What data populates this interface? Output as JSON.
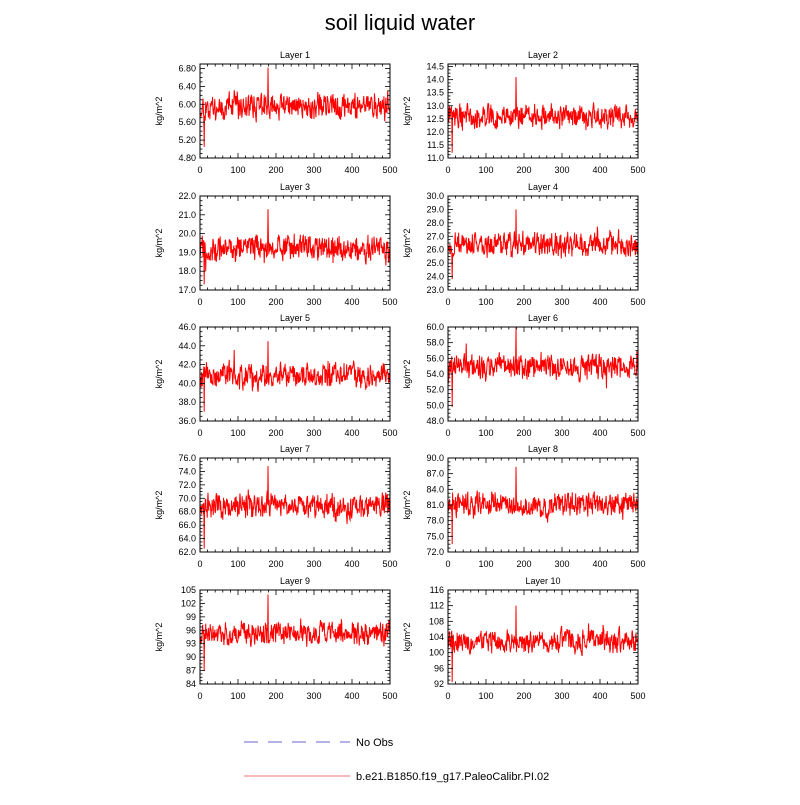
{
  "figure": {
    "title": "soil liquid water"
  },
  "colors": {
    "model_line": "#ff0000",
    "obs_line": "#9a9ade",
    "legend_model_line": "#f4a0a0",
    "axis": "#000000",
    "background": "#ffffff"
  },
  "legend": [
    {
      "label": "No Obs",
      "style": "dashed",
      "color": "#9a9ade"
    },
    {
      "label": "b.e21.B1850.f19_g17.PaleoCalibr.PI.02",
      "style": "solid",
      "color": "#f4a0a0"
    }
  ],
  "chart_data": [
    {
      "type": "line",
      "title": "Layer 1",
      "xlabel": "",
      "ylabel": "kg/m^2",
      "xlim": [
        0,
        500
      ],
      "xticks": [
        0,
        100,
        200,
        300,
        400,
        500
      ],
      "ylim": [
        4.8,
        6.9
      ],
      "yticks": [
        "4.80",
        "5.20",
        "5.60",
        "6.00",
        "6.40",
        "6.80"
      ],
      "series": [
        {
          "name": "b.e21.B1850.f19_g17.PaleoCalibr.PI.02",
          "points": 500,
          "mean": 5.95,
          "amplitude": 0.22,
          "spike_high": 6.82,
          "spike_low": 5.05,
          "seed": 11
        }
      ]
    },
    {
      "type": "line",
      "title": "Layer 2",
      "xlabel": "",
      "ylabel": "kg/m^2",
      "xlim": [
        0,
        500
      ],
      "xticks": [
        0,
        100,
        200,
        300,
        400,
        500
      ],
      "ylim": [
        11.0,
        14.6
      ],
      "yticks": [
        "11.0",
        "11.5",
        "12.0",
        "12.5",
        "13.0",
        "13.5",
        "14.0",
        "14.5"
      ],
      "series": [
        {
          "name": "b.e21.B1850.f19_g17.PaleoCalibr.PI.02",
          "points": 500,
          "mean": 12.6,
          "amplitude": 0.35,
          "spike_high": 14.1,
          "spike_low": 11.2,
          "seed": 22
        }
      ]
    },
    {
      "type": "line",
      "title": "Layer 3",
      "xlabel": "",
      "ylabel": "kg/m^2",
      "xlim": [
        0,
        500
      ],
      "xticks": [
        0,
        100,
        200,
        300,
        400,
        500
      ],
      "ylim": [
        17.0,
        22.0
      ],
      "yticks": [
        "17.0",
        "18.0",
        "19.0",
        "20.0",
        "21.0",
        "22.0"
      ],
      "series": [
        {
          "name": "b.e21.B1850.f19_g17.PaleoCalibr.PI.02",
          "points": 500,
          "mean": 19.2,
          "amplitude": 0.55,
          "spike_high": 21.3,
          "spike_low": 17.3,
          "seed": 33
        }
      ]
    },
    {
      "type": "line",
      "title": "Layer 4",
      "xlabel": "",
      "ylabel": "kg/m^2",
      "xlim": [
        0,
        500
      ],
      "xticks": [
        0,
        100,
        200,
        300,
        400,
        500
      ],
      "ylim": [
        23.0,
        30.0
      ],
      "yticks": [
        "23.0",
        "24.0",
        "25.0",
        "26.0",
        "27.0",
        "28.0",
        "29.0",
        "30.0"
      ],
      "series": [
        {
          "name": "b.e21.B1850.f19_g17.PaleoCalibr.PI.02",
          "points": 500,
          "mean": 26.4,
          "amplitude": 0.7,
          "spike_high": 29.0,
          "spike_low": 23.8,
          "seed": 44
        }
      ]
    },
    {
      "type": "line",
      "title": "Layer 5",
      "xlabel": "",
      "ylabel": "kg/m^2",
      "xlim": [
        0,
        500
      ],
      "xticks": [
        0,
        100,
        200,
        300,
        400,
        500
      ],
      "ylim": [
        36.0,
        46.0
      ],
      "yticks": [
        "36.0",
        "38.0",
        "40.0",
        "42.0",
        "44.0",
        "46.0"
      ],
      "series": [
        {
          "name": "b.e21.B1850.f19_g17.PaleoCalibr.PI.02",
          "points": 500,
          "mean": 40.8,
          "amplitude": 1.0,
          "spike_high": 44.5,
          "spike_low": 37.0,
          "seed": 55
        }
      ]
    },
    {
      "type": "line",
      "title": "Layer 6",
      "xlabel": "",
      "ylabel": "kg/m^2",
      "xlim": [
        0,
        500
      ],
      "xticks": [
        0,
        100,
        200,
        300,
        400,
        500
      ],
      "ylim": [
        48.0,
        60.0
      ],
      "yticks": [
        "48.0",
        "50.0",
        "52.0",
        "54.0",
        "56.0",
        "58.0",
        "60.0"
      ],
      "series": [
        {
          "name": "b.e21.B1850.f19_g17.PaleoCalibr.PI.02",
          "points": 500,
          "mean": 55.0,
          "amplitude": 1.2,
          "spike_high": 60.0,
          "spike_low": 49.8,
          "seed": 66
        }
      ]
    },
    {
      "type": "line",
      "title": "Layer 7",
      "xlabel": "",
      "ylabel": "kg/m^2",
      "xlim": [
        0,
        500
      ],
      "xticks": [
        0,
        100,
        200,
        300,
        400,
        500
      ],
      "ylim": [
        62.0,
        76.0
      ],
      "yticks": [
        "62.0",
        "64.0",
        "66.0",
        "68.0",
        "70.0",
        "72.0",
        "74.0",
        "76.0"
      ],
      "series": [
        {
          "name": "b.e21.B1850.f19_g17.PaleoCalibr.PI.02",
          "points": 500,
          "mean": 68.8,
          "amplitude": 1.4,
          "spike_high": 74.8,
          "spike_low": 62.5,
          "seed": 77
        }
      ]
    },
    {
      "type": "line",
      "title": "Layer 8",
      "xlabel": "",
      "ylabel": "kg/m^2",
      "xlim": [
        0,
        500
      ],
      "xticks": [
        0,
        100,
        200,
        300,
        400,
        500
      ],
      "ylim": [
        72.0,
        90.0
      ],
      "yticks": [
        "72.0",
        "75.0",
        "78.0",
        "81.0",
        "84.0",
        "87.0",
        "90.0"
      ],
      "series": [
        {
          "name": "b.e21.B1850.f19_g17.PaleoCalibr.PI.02",
          "points": 500,
          "mean": 81.0,
          "amplitude": 1.8,
          "spike_high": 88.3,
          "spike_low": 73.5,
          "seed": 88
        }
      ]
    },
    {
      "type": "line",
      "title": "Layer 9",
      "xlabel": "",
      "ylabel": "kg/m^2",
      "xlim": [
        0,
        500
      ],
      "xticks": [
        0,
        100,
        200,
        300,
        400,
        500
      ],
      "ylim": [
        84.0,
        105.0
      ],
      "yticks": [
        "84",
        "87",
        "90",
        "93",
        "96",
        "99",
        "102",
        "105"
      ],
      "series": [
        {
          "name": "b.e21.B1850.f19_g17.PaleoCalibr.PI.02",
          "points": 500,
          "mean": 95.5,
          "amplitude": 2.0,
          "spike_high": 104.0,
          "spike_low": 87.0,
          "seed": 99
        }
      ]
    },
    {
      "type": "line",
      "title": "Layer 10",
      "xlabel": "",
      "ylabel": "kg/m^2",
      "xlim": [
        0,
        500
      ],
      "xticks": [
        0,
        100,
        200,
        300,
        400,
        500
      ],
      "ylim": [
        92.0,
        116.0
      ],
      "yticks": [
        "92",
        "96",
        "100",
        "104",
        "108",
        "112",
        "116"
      ],
      "series": [
        {
          "name": "b.e21.B1850.f19_g17.PaleoCalibr.PI.02",
          "points": 500,
          "mean": 102.8,
          "amplitude": 2.2,
          "spike_high": 112.0,
          "spike_low": 92.5,
          "seed": 110
        }
      ]
    }
  ]
}
